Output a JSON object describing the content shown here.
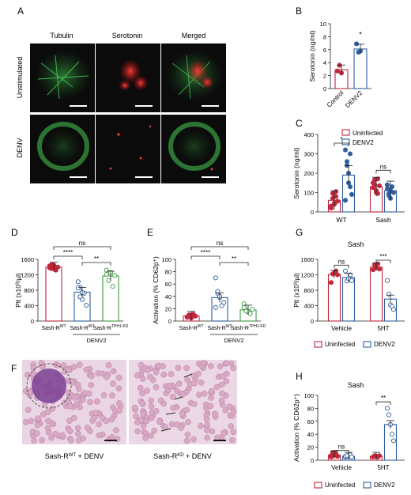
{
  "panel_letters": {
    "A": "A",
    "B": "B",
    "C": "C",
    "D": "D",
    "E": "E",
    "F": "F",
    "G": "G",
    "H": "H"
  },
  "panel_A": {
    "columns": [
      "Tubulin",
      "Serotonin",
      "Merged"
    ],
    "rows": [
      "Unstimulated",
      "DENV"
    ]
  },
  "panel_F": {
    "captions": [
      "Sash-R",
      "WT",
      " + DENV",
      "Sash-R",
      "KD",
      " + DENV"
    ]
  },
  "common": {
    "sig_ns": "ns",
    "sig_1": "*",
    "sig_2": "**",
    "sig_3": "***",
    "sig_4": "****",
    "legend": [
      "Uninfected",
      "DENV2"
    ],
    "denv2_group": "DENV2",
    "sash_title": "Sash",
    "colors": {
      "uninfected": "#c0283c",
      "denv2": "#2f5f9e",
      "kd": "#3c9a3c",
      "wt_control": "#c0283c"
    }
  },
  "chart_data": [
    {
      "panel": "B",
      "type": "bar",
      "ylabel": "Serotonin (ng/ml)",
      "ylim": [
        0,
        10
      ],
      "yticks": [
        0,
        2,
        4,
        6,
        8,
        10
      ],
      "categories": [
        "Control",
        "DENV2"
      ],
      "values": [
        2.9,
        6.1
      ],
      "points": [
        [
          2.7,
          3.6,
          2.4
        ],
        [
          6.9,
          5.6,
          5.8
        ]
      ],
      "significance": "*"
    },
    {
      "panel": "C",
      "type": "bar",
      "ylabel": "Serotonin (ng/ml)",
      "ylim": [
        0,
        400
      ],
      "yticks": [
        0,
        100,
        200,
        300,
        400
      ],
      "categories": [
        "WT",
        "Sash"
      ],
      "series": [
        {
          "name": "Uninfected",
          "values": [
            60,
            130
          ],
          "points": [
            [
              30,
              95,
              45,
              80,
              55,
              20,
              70,
              40,
              105
            ],
            [
              150,
              165,
              110,
              95,
              135,
              125,
              140,
              100,
              170
            ]
          ]
        },
        {
          "name": "DENV2",
          "values": [
            190,
            110
          ],
          "points": [
            [
              320,
              260,
              200,
              130,
              90,
              60,
              240,
              150,
              300
            ],
            [
              140,
              95,
              70,
              130,
              100,
              120,
              85,
              110
            ]
          ]
        }
      ],
      "significance": [
        "*",
        "ns"
      ]
    },
    {
      "panel": "D",
      "type": "bar",
      "ylabel": "Plt (x10³/µl)",
      "ylim": [
        0,
        1600
      ],
      "yticks": [
        0,
        400,
        800,
        1200,
        1600
      ],
      "categories": [
        "Sash-R^WT",
        "Sash-R^WT",
        "Sash-R^TPH1-KD"
      ],
      "values": [
        1400,
        750,
        1170
      ],
      "points": [
        [
          1380,
          1460,
          1420,
          1320,
          1400,
          1430,
          1360,
          1450
        ],
        [
          1020,
          870,
          560,
          720,
          410,
          860,
          630,
          740
        ],
        [
          1320,
          1050,
          1260,
          900,
          1180,
          1210
        ]
      ],
      "significance": [
        "****",
        "**",
        "ns"
      ]
    },
    {
      "panel": "E",
      "type": "bar",
      "ylabel": "Activation (% CD62p⁺)",
      "ylim": [
        0,
        100
      ],
      "yticks": [
        0,
        20,
        40,
        60,
        80,
        100
      ],
      "categories": [
        "Sash-R^WT",
        "Sash-R^WT",
        "Sash-R^TPH1-KD"
      ],
      "values": [
        8,
        38,
        18
      ],
      "points": [
        [
          6,
          9,
          5,
          11,
          8,
          7,
          10,
          6
        ],
        [
          70,
          45,
          38,
          25,
          30,
          22,
          48,
          40
        ],
        [
          28,
          18,
          15,
          12,
          19,
          22,
          16
        ]
      ],
      "significance": [
        "****",
        "**",
        "ns"
      ]
    },
    {
      "panel": "G",
      "type": "bar",
      "title": "Sash",
      "ylabel": "Plt (x10³/µl)",
      "ylim": [
        0,
        1600
      ],
      "yticks": [
        0,
        400,
        800,
        1200,
        1600
      ],
      "categories": [
        "Vehicle",
        "5HT"
      ],
      "series": [
        {
          "name": "Uninfected",
          "values": [
            1210,
            1400
          ],
          "points": [
            [
              1000,
              1220,
              1250,
              1300,
              1200
            ],
            [
              1330,
              1460,
              1390,
              1480,
              1350
            ]
          ]
        },
        {
          "name": "DENV2",
          "values": [
            1130,
            570
          ],
          "points": [
            [
              1300,
              1040,
              1100,
              1200,
              1050
            ],
            [
              1050,
              700,
              420,
              380,
              300
            ]
          ]
        }
      ],
      "significance": [
        "ns",
        "***"
      ]
    },
    {
      "panel": "H",
      "type": "bar",
      "title": "Sash",
      "ylabel": "Activation (% CD62p⁺)",
      "ylim": [
        0,
        100
      ],
      "yticks": [
        0,
        20,
        40,
        60,
        80,
        100
      ],
      "categories": [
        "Vehicle",
        "5HT"
      ],
      "series": [
        {
          "name": "Uninfected",
          "values": [
            8,
            6
          ],
          "points": [
            [
              5,
              12,
              8,
              10,
              6,
              7,
              9
            ],
            [
              5,
              7,
              6,
              5,
              7
            ]
          ]
        },
        {
          "name": "DENV2",
          "values": [
            6,
            55
          ],
          "points": [
            [
              5,
              7,
              6,
              8,
              5,
              6,
              7
            ],
            [
              80,
              70,
              55,
              40,
              30
            ]
          ]
        }
      ],
      "significance": [
        "ns",
        "**"
      ]
    }
  ]
}
